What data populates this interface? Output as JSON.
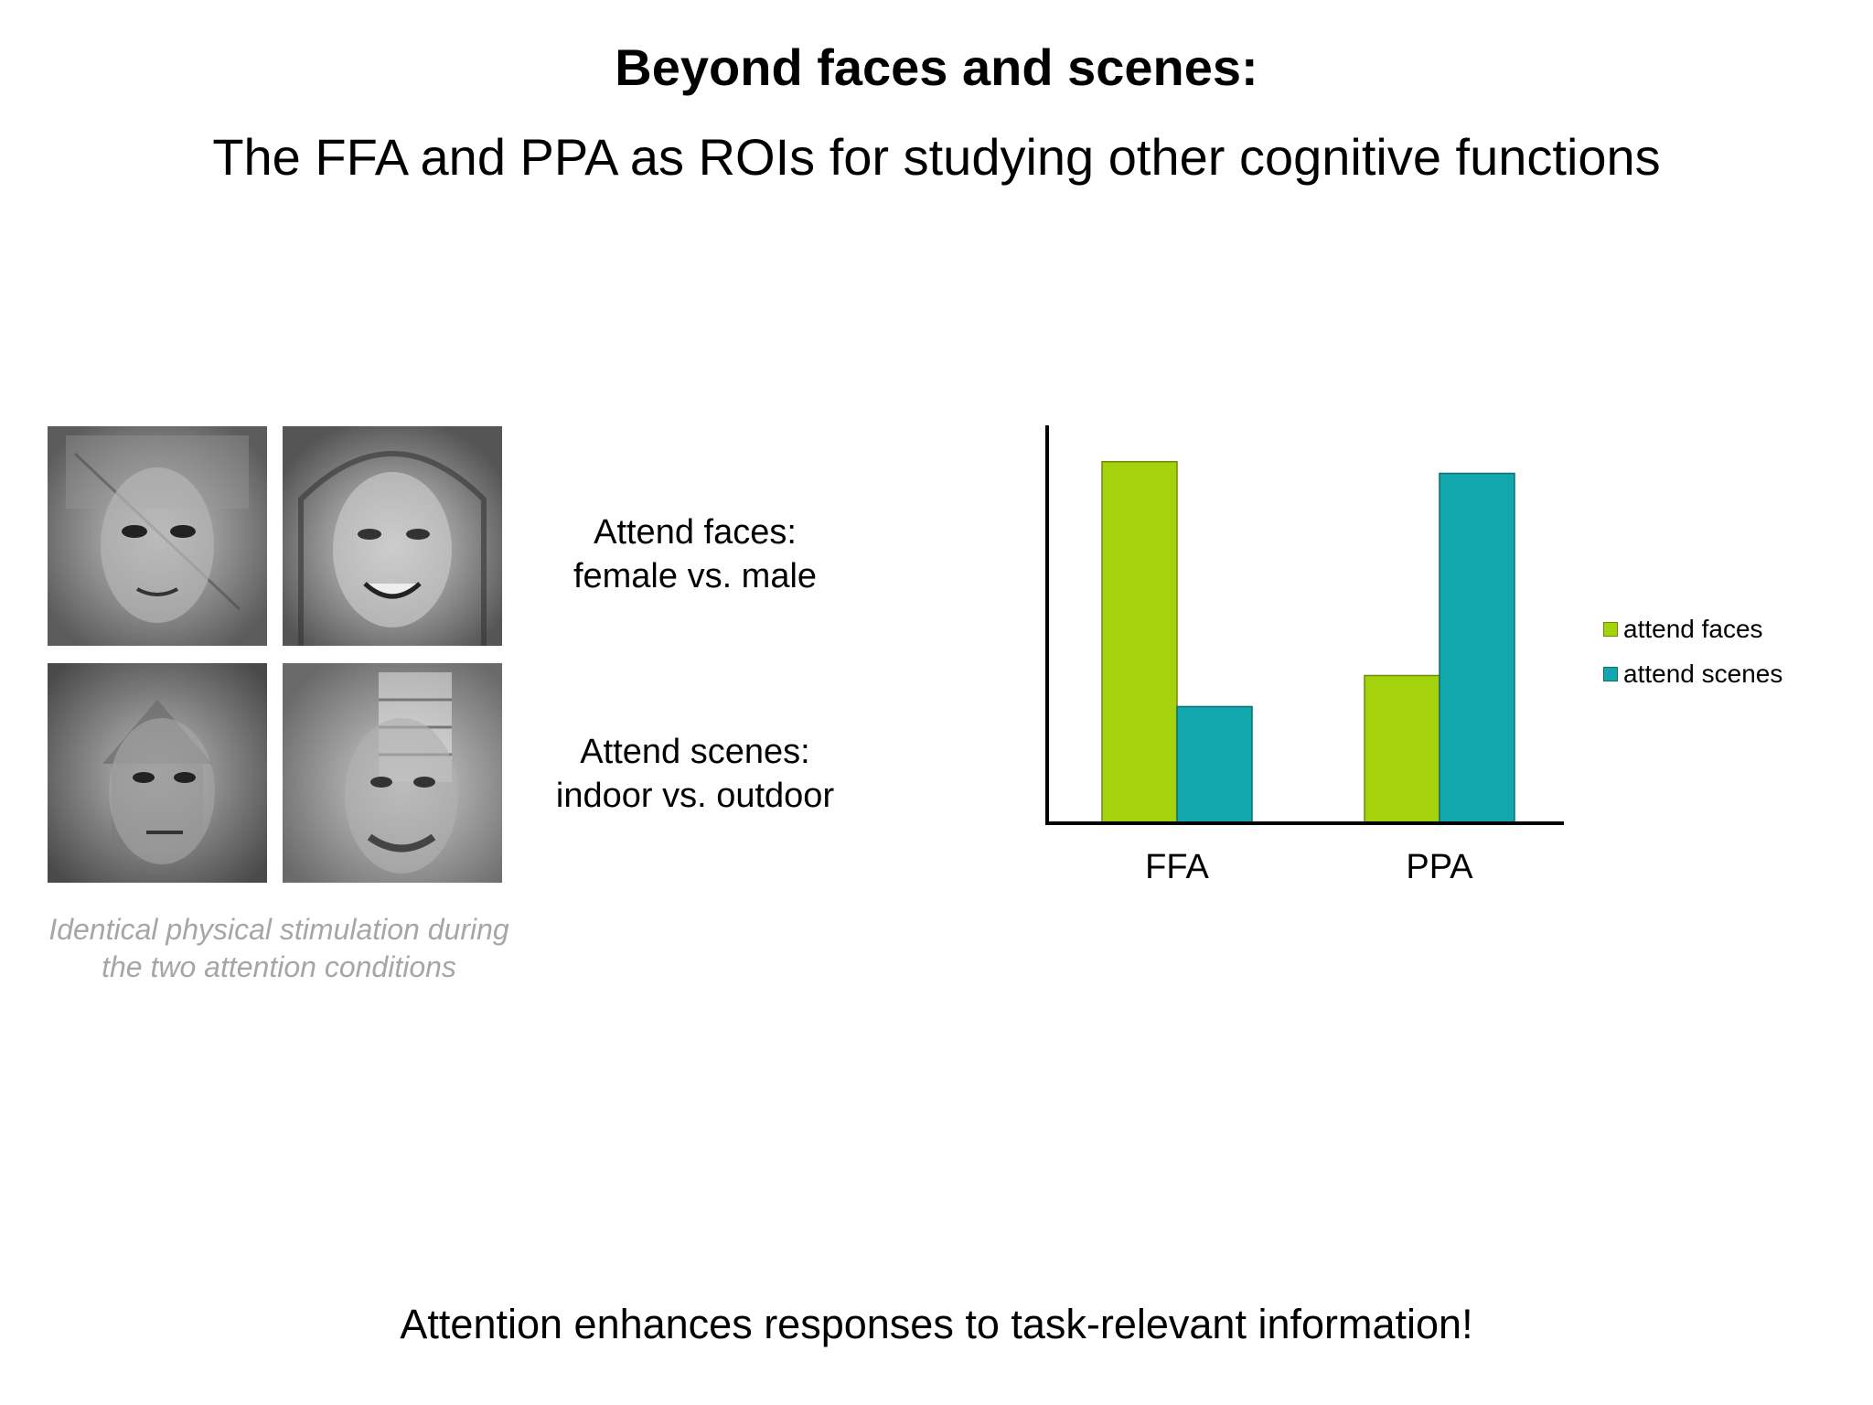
{
  "slide": {
    "title": "Beyond faces and scenes:",
    "subtitle": "The FFA and PPA as ROIs for studying other cognitive functions",
    "condition_faces_line1": "Attend faces:",
    "condition_faces_line2": "female vs. male",
    "condition_scenes_line1": "Attend scenes:",
    "condition_scenes_line2": "indoor vs. outdoor",
    "caption_line1": "Identical physical stimulation during",
    "caption_line2": "the two attention conditions",
    "conclusion": "Attention enhances responses to task-relevant information!"
  },
  "stimuli": [
    {
      "icon": "face-scene-overlay-image"
    },
    {
      "icon": "face-scene-overlay-image"
    },
    {
      "icon": "face-scene-overlay-image"
    },
    {
      "icon": "face-scene-overlay-image"
    }
  ],
  "chart_data": {
    "type": "bar",
    "categories": [
      "FFA",
      "PPA"
    ],
    "series": [
      {
        "name": "attend faces",
        "values": [
          93,
          38
        ],
        "color": "#a4d20c"
      },
      {
        "name": "attend scenes",
        "values": [
          30,
          90
        ],
        "color": "#12a7ad"
      }
    ],
    "ylim": [
      0,
      100
    ],
    "grid": false,
    "legend_position": "right",
    "y_ticks_shown": false
  }
}
